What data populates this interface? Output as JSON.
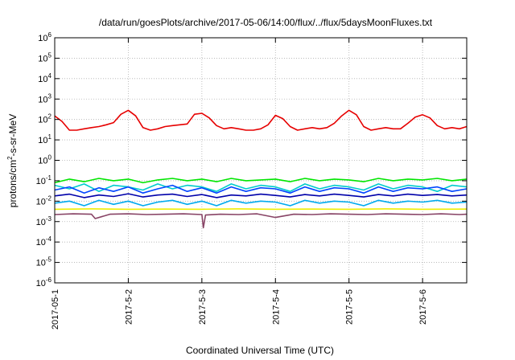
{
  "chart_data": {
    "type": "line",
    "title": "/data/run/goesPlots/archive/2017-05-06/14:00/flux/../flux/5daysMoonFluxes.txt",
    "xlabel": "Coordinated Universal Time (UTC)",
    "ylabel": "protons/cm²-s-sr-MeV",
    "ylabel_parts": {
      "base": "protons/cm",
      "sup": "2",
      "rest": "-s-sr-MeV"
    },
    "y_scale": "log",
    "ylim": [
      1e-06,
      1000000.0
    ],
    "y_ticks": [
      {
        "base": "10",
        "exp": "-6"
      },
      {
        "base": "10",
        "exp": "-5"
      },
      {
        "base": "10",
        "exp": "-4"
      },
      {
        "base": "10",
        "exp": "-3"
      },
      {
        "base": "10",
        "exp": "-2"
      },
      {
        "base": "10",
        "exp": "-1"
      },
      {
        "base": "10",
        "exp": "0"
      },
      {
        "base": "10",
        "exp": "1"
      },
      {
        "base": "10",
        "exp": "2"
      },
      {
        "base": "10",
        "exp": "3"
      },
      {
        "base": "10",
        "exp": "4"
      },
      {
        "base": "10",
        "exp": "5"
      },
      {
        "base": "10",
        "exp": "6"
      }
    ],
    "x_range_days": [
      0,
      5.6
    ],
    "x_ticks": [
      {
        "day": 0,
        "label": "2017-05-1"
      },
      {
        "day": 1,
        "label": "2017-5-2"
      },
      {
        "day": 2,
        "label": "2017-5-3"
      },
      {
        "day": 3,
        "label": "2017-5-4"
      },
      {
        "day": 4,
        "label": "2017-5-5"
      },
      {
        "day": 5,
        "label": "2017-5-6"
      }
    ],
    "grid": true,
    "legend": "none",
    "series": [
      {
        "color": "#e60000",
        "x": [
          0,
          0.1,
          0.2,
          0.3,
          0.4,
          0.5,
          0.6,
          0.7,
          0.8,
          0.9,
          1.0,
          1.1,
          1.2,
          1.3,
          1.4,
          1.5,
          1.6,
          1.7,
          1.8,
          1.9,
          2.0,
          2.1,
          2.2,
          2.3,
          2.4,
          2.5,
          2.6,
          2.7,
          2.8,
          2.9,
          3.0,
          3.1,
          3.2,
          3.3,
          3.4,
          3.5,
          3.6,
          3.7,
          3.8,
          3.9,
          4.0,
          4.1,
          4.2,
          4.3,
          4.4,
          4.5,
          4.6,
          4.7,
          4.8,
          4.9,
          5.0,
          5.1,
          5.2,
          5.3,
          5.4,
          5.5,
          5.6
        ],
        "values": [
          150,
          80,
          30,
          30,
          35,
          40,
          45,
          55,
          70,
          180,
          280,
          150,
          40,
          30,
          35,
          45,
          50,
          55,
          60,
          180,
          200,
          120,
          50,
          35,
          40,
          35,
          30,
          30,
          35,
          55,
          160,
          110,
          45,
          30,
          35,
          40,
          35,
          40,
          65,
          150,
          280,
          170,
          45,
          30,
          35,
          40,
          35,
          35,
          65,
          130,
          170,
          120,
          50,
          35,
          40,
          35,
          45
        ]
      },
      {
        "color": "#00e600",
        "x": [
          0,
          0.2,
          0.4,
          0.6,
          0.8,
          1.0,
          1.2,
          1.4,
          1.6,
          1.8,
          2.0,
          2.2,
          2.4,
          2.6,
          2.8,
          3.0,
          3.2,
          3.4,
          3.6,
          3.8,
          4.0,
          4.2,
          4.4,
          4.6,
          4.8,
          5.0,
          5.2,
          5.4,
          5.6
        ],
        "values": [
          0.08,
          0.12,
          0.09,
          0.13,
          0.1,
          0.12,
          0.08,
          0.11,
          0.13,
          0.1,
          0.12,
          0.09,
          0.13,
          0.1,
          0.11,
          0.12,
          0.09,
          0.13,
          0.1,
          0.12,
          0.11,
          0.09,
          0.13,
          0.1,
          0.12,
          0.11,
          0.13,
          0.1,
          0.12
        ]
      },
      {
        "color": "#00cccc",
        "x": [
          0,
          0.2,
          0.4,
          0.6,
          0.8,
          1.0,
          1.2,
          1.4,
          1.6,
          1.8,
          2.0,
          2.2,
          2.4,
          2.6,
          2.8,
          3.0,
          3.2,
          3.4,
          3.6,
          3.8,
          4.0,
          4.2,
          4.4,
          4.6,
          4.8,
          5.0,
          5.2,
          5.4,
          5.6
        ],
        "values": [
          0.06,
          0.04,
          0.07,
          0.03,
          0.06,
          0.05,
          0.035,
          0.07,
          0.04,
          0.06,
          0.05,
          0.03,
          0.07,
          0.04,
          0.06,
          0.05,
          0.03,
          0.07,
          0.04,
          0.06,
          0.05,
          0.035,
          0.07,
          0.04,
          0.06,
          0.05,
          0.03,
          0.06,
          0.05
        ]
      },
      {
        "color": "#0044ff",
        "x": [
          0,
          0.2,
          0.4,
          0.6,
          0.8,
          1.0,
          1.2,
          1.4,
          1.6,
          1.8,
          2.0,
          2.2,
          2.4,
          2.6,
          2.8,
          3.0,
          3.2,
          3.4,
          3.6,
          3.8,
          4.0,
          4.2,
          4.4,
          4.6,
          4.8,
          5.0,
          5.2,
          5.4,
          5.6
        ],
        "values": [
          0.035,
          0.05,
          0.025,
          0.045,
          0.03,
          0.05,
          0.025,
          0.04,
          0.06,
          0.03,
          0.045,
          0.025,
          0.05,
          0.03,
          0.045,
          0.04,
          0.025,
          0.05,
          0.03,
          0.045,
          0.04,
          0.025,
          0.05,
          0.03,
          0.045,
          0.04,
          0.05,
          0.03,
          0.04
        ]
      },
      {
        "color": "#0000aa",
        "x": [
          0,
          0.2,
          0.4,
          0.6,
          0.8,
          1.0,
          1.2,
          1.4,
          1.6,
          1.8,
          2.0,
          2.2,
          2.4,
          2.6,
          2.8,
          3.0,
          3.2,
          3.4,
          3.6,
          3.8,
          4.0,
          4.2,
          4.4,
          4.6,
          4.8,
          5.0,
          5.2,
          5.4,
          5.6
        ],
        "values": [
          0.018,
          0.022,
          0.015,
          0.02,
          0.017,
          0.023,
          0.016,
          0.02,
          0.022,
          0.017,
          0.021,
          0.015,
          0.02,
          0.018,
          0.022,
          0.019,
          0.016,
          0.021,
          0.018,
          0.022,
          0.019,
          0.016,
          0.021,
          0.018,
          0.022,
          0.019,
          0.021,
          0.018,
          0.02
        ]
      },
      {
        "color": "#00aaee",
        "x": [
          0,
          0.2,
          0.4,
          0.6,
          0.8,
          1.0,
          1.2,
          1.4,
          1.6,
          1.8,
          2.0,
          2.2,
          2.4,
          2.6,
          2.8,
          3.0,
          3.2,
          3.4,
          3.6,
          3.8,
          4.0,
          4.2,
          4.4,
          4.6,
          4.8,
          5.0,
          5.2,
          5.4,
          5.6
        ],
        "values": [
          0.008,
          0.01,
          0.006,
          0.011,
          0.007,
          0.01,
          0.006,
          0.009,
          0.011,
          0.007,
          0.01,
          0.006,
          0.011,
          0.008,
          0.01,
          0.009,
          0.006,
          0.011,
          0.008,
          0.01,
          0.009,
          0.006,
          0.011,
          0.008,
          0.01,
          0.009,
          0.011,
          0.008,
          0.009
        ]
      },
      {
        "color": "#eeee00",
        "x": [
          0,
          0.5,
          1.0,
          1.5,
          2.0,
          2.5,
          3.0,
          3.5,
          4.0,
          4.5,
          5.0,
          5.6
        ],
        "values": [
          0.004,
          0.0042,
          0.004,
          0.0041,
          0.004,
          0.0042,
          0.004,
          0.0041,
          0.004,
          0.0042,
          0.004,
          0.0041
        ]
      },
      {
        "color": "#884466",
        "x": [
          0,
          0.25,
          0.5,
          0.55,
          0.75,
          1.0,
          1.25,
          1.5,
          1.75,
          2.0,
          2.02,
          2.05,
          2.25,
          2.5,
          2.75,
          3.0,
          3.25,
          3.5,
          3.75,
          4.0,
          4.25,
          4.5,
          4.75,
          5.0,
          5.25,
          5.5,
          5.6
        ],
        "values": [
          0.0022,
          0.0024,
          0.0023,
          0.0014,
          0.0023,
          0.0024,
          0.0022,
          0.0023,
          0.0024,
          0.0022,
          0.0005,
          0.0021,
          0.0023,
          0.0022,
          0.0024,
          0.0016,
          0.0023,
          0.0022,
          0.0024,
          0.0023,
          0.0022,
          0.0024,
          0.0023,
          0.0022,
          0.0024,
          0.0022,
          0.0023
        ]
      }
    ]
  }
}
